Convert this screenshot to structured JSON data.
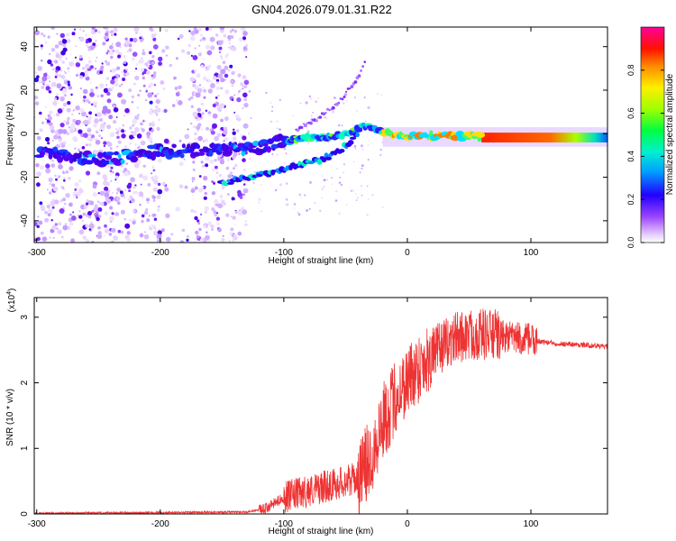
{
  "title": "GN04.2026.079.01.31.R22",
  "chart_data": [
    {
      "type": "heatmap",
      "name": "spectrogram",
      "xlabel": "Height of straight line (km)",
      "ylabel": "Frequency (Hz)",
      "xlim": [
        -302,
        162
      ],
      "ylim": [
        -50,
        49
      ],
      "xticks": [
        -300,
        -200,
        -100,
        0,
        100
      ],
      "yticks": [
        -40,
        -20,
        0,
        20,
        40
      ],
      "colorbar": {
        "label": "Normalized spectral amplitude",
        "range": [
          0,
          1
        ],
        "ticks": [
          "0.0",
          "0.2",
          "0.4",
          "0.6",
          "0.8"
        ],
        "tick_values": [
          0.0,
          0.2,
          0.4,
          0.6,
          0.8
        ]
      },
      "ridge": {
        "description_points_km_hz": [
          [
            -290,
            -9
          ],
          [
            -250,
            -12
          ],
          [
            -200,
            -8
          ],
          [
            -150,
            -7
          ],
          [
            -120,
            -6
          ],
          [
            -100,
            -3
          ],
          [
            -80,
            -2
          ],
          [
            -60,
            -1
          ],
          [
            -45,
            1
          ],
          [
            -35,
            4
          ],
          [
            -20,
            0
          ],
          [
            0,
            -1
          ],
          [
            50,
            -1
          ],
          [
            100,
            -2
          ],
          [
            162,
            -3
          ]
        ],
        "lower_branch_km_hz": [
          [
            -150,
            -23
          ],
          [
            -130,
            -20
          ],
          [
            -110,
            -18
          ],
          [
            -90,
            -15
          ],
          [
            -70,
            -12
          ],
          [
            -55,
            -8
          ],
          [
            -45,
            -3
          ],
          [
            -40,
            0
          ]
        ],
        "diagonal_km_hz": [
          [
            -90,
            2
          ],
          [
            -70,
            8
          ],
          [
            -55,
            15
          ],
          [
            -45,
            22
          ],
          [
            -38,
            28
          ],
          [
            -34,
            33
          ]
        ]
      }
    },
    {
      "type": "line",
      "name": "snr",
      "xlabel": "Height of straight line (km)",
      "ylabel": "SNR (10 * v/v)",
      "yscale_label": "(x10",
      "yscale_exp": "4",
      "yscale_close": ")",
      "xlim": [
        -302,
        162
      ],
      "ylim": [
        0,
        3.3
      ],
      "xticks": [
        -300,
        -200,
        -100,
        0,
        100
      ],
      "yticks": [
        0,
        1,
        2,
        3
      ],
      "color": "#ee3333",
      "envelope": {
        "x": [
          -302,
          -200,
          -130,
          -115,
          -100,
          -80,
          -60,
          -40,
          -30,
          -20,
          -10,
          0,
          20,
          40,
          60,
          80,
          100,
          120,
          140,
          162
        ],
        "y": [
          0.01,
          0.02,
          0.03,
          0.08,
          0.25,
          0.35,
          0.45,
          0.55,
          0.85,
          1.4,
          1.75,
          2.05,
          2.45,
          2.7,
          2.75,
          2.7,
          2.65,
          2.6,
          2.58,
          2.55
        ]
      }
    }
  ]
}
